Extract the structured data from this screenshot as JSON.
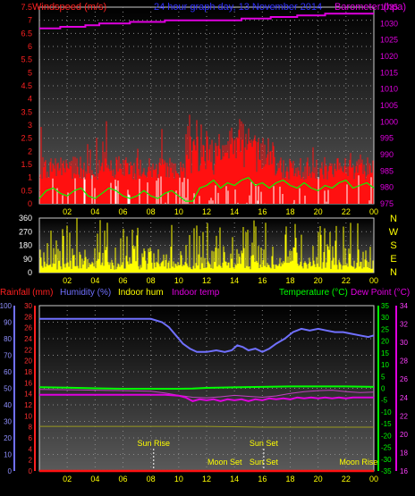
{
  "chart_data": [
    {
      "id": "wind-baro",
      "type": "line",
      "title": "24 hour graph day, 13 November 2014",
      "left_axis_label": "Windspeed (m/s)",
      "right_axis_label": "Barometer (hpa)",
      "colors": {
        "title": "#3030ff",
        "wind_label": "#ff2020",
        "baro_label": "#e000e0",
        "wind": "#ff1010",
        "gust": "#ffffff",
        "wind_avg": "#00ff00",
        "baro": "#e000e0"
      },
      "left_ylim": [
        0,
        7.5
      ],
      "left_ticks": [
        "0",
        "0.5",
        "1",
        "1.5",
        "2",
        "2.5",
        "3",
        "3.5",
        "4",
        "4.5",
        "5",
        "5.5",
        "6",
        "6.5",
        "7",
        "7.5"
      ],
      "right_ylim": [
        975,
        1035
      ],
      "right_ticks": [
        "975",
        "980",
        "985",
        "990",
        "995",
        "1000",
        "1005",
        "1010",
        "1015",
        "1020",
        "1025",
        "1030",
        "1035"
      ],
      "x_hours": [
        "02",
        "04",
        "06",
        "08",
        "10",
        "12",
        "14",
        "16",
        "18",
        "20",
        "22",
        "00"
      ],
      "series": [
        {
          "key": "barometer",
          "axis": "right",
          "x": [
            0,
            0.7,
            1.5,
            2.4,
            3.3,
            4.3,
            5.4,
            6.5,
            7.5,
            8.2,
            9.0,
            10.0,
            11.0,
            12.0,
            13.3,
            14.5,
            15.6,
            16.6,
            17.5,
            18.5,
            19.5,
            20.5,
            21.5,
            22.5,
            24
          ],
          "y": [
            1028.5,
            1028.5,
            1029.0,
            1029.0,
            1029.5,
            1030.0,
            1030.0,
            1030.5,
            1030.5,
            1030.5,
            1031.0,
            1031.0,
            1031.0,
            1031.0,
            1031.0,
            1031.5,
            1031.5,
            1032.0,
            1032.0,
            1032.5,
            1032.5,
            1033.0,
            1033.0,
            1033.0,
            1033.0
          ]
        },
        {
          "key": "wind_avg",
          "axis": "left",
          "x": [
            0,
            0.5,
            1,
            1.5,
            2,
            2.5,
            3,
            3.5,
            4,
            4.5,
            5,
            5.5,
            6,
            6.5,
            7,
            7.5,
            8,
            8.5,
            9,
            9.5,
            10,
            10.5,
            11,
            11.5,
            12,
            12.5,
            13,
            13.5,
            14,
            14.5,
            15,
            15.5,
            16,
            16.5,
            17,
            17.5,
            18,
            18.5,
            19,
            19.5,
            20,
            20.5,
            21,
            21.5,
            22,
            22.5,
            23,
            23.5,
            24
          ],
          "y": [
            0.2,
            0.5,
            0.6,
            0.4,
            0.3,
            0.5,
            0.6,
            0.3,
            0.2,
            0.4,
            0.6,
            0.5,
            0.3,
            0.2,
            0.3,
            0.5,
            0.3,
            0.2,
            0.4,
            0.5,
            0.3,
            0.1,
            0.1,
            0.6,
            0.7,
            0.9,
            0.6,
            0.8,
            0.7,
            0.9,
            1.0,
            0.7,
            0.8,
            0.6,
            0.8,
            0.9,
            0.7,
            0.6,
            0.8,
            0.6,
            0.5,
            0.7,
            0.6,
            0.8,
            0.9,
            0.6,
            0.7,
            0.8,
            0.6
          ]
        }
      ]
    },
    {
      "id": "wind-direction",
      "type": "bar",
      "left_axis_label": "",
      "colors": {
        "bars": "#ffff00"
      },
      "ylim": [
        0,
        360
      ],
      "left_ticks": [
        "0",
        "90",
        "180",
        "270",
        "360"
      ],
      "right_labels": [
        "N",
        "W",
        "S",
        "E",
        "N"
      ],
      "x_hours": [
        "02",
        "04",
        "06",
        "08",
        "10",
        "12",
        "14",
        "16",
        "18",
        "20",
        "22",
        "00"
      ]
    },
    {
      "id": "temp-hum-rain",
      "type": "line",
      "legend_left": [
        {
          "label": "Rainfall (mm)",
          "color": "#ff2020"
        },
        {
          "label": "Humidity (%)",
          "color": "#7070ff"
        },
        {
          "label": "Indoor hum",
          "color": "#ffff00"
        },
        {
          "label": "Indoor temp",
          "color": "#e000e0"
        }
      ],
      "legend_right": [
        {
          "label": "Temperature (°C)",
          "color": "#00ff00"
        },
        {
          "label": "Dew Point (°C)",
          "color": "#e000e0"
        }
      ],
      "humidity_ylim": [
        0,
        100
      ],
      "humidity_ticks": [
        "0",
        "10",
        "20",
        "30",
        "40",
        "50",
        "60",
        "70",
        "80",
        "90",
        "100"
      ],
      "rain_ylim": [
        0,
        30
      ],
      "rain_ticks": [
        "0",
        "2",
        "4",
        "6",
        "8",
        "10",
        "12",
        "14",
        "16",
        "18",
        "20",
        "22",
        "24",
        "26",
        "28",
        "30"
      ],
      "temp_ylim": [
        -35,
        35
      ],
      "temp_ticks": [
        "-35",
        "-30",
        "-25",
        "-20",
        "-15",
        "-10",
        "-5",
        "0",
        "5",
        "10",
        "15",
        "20",
        "25",
        "30",
        "35"
      ],
      "indoor_ylim": [
        16,
        34
      ],
      "indoor_ticks": [
        "16",
        "18",
        "20",
        "22",
        "24",
        "26",
        "28",
        "30",
        "32",
        "34"
      ],
      "x_hours": [
        "02",
        "04",
        "06",
        "08",
        "10",
        "12",
        "14",
        "16",
        "18",
        "20",
        "22",
        "00"
      ],
      "annotations": [
        {
          "label": "Sun Rise",
          "hour": 8.2,
          "row": "upper"
        },
        {
          "label": "Sun Set",
          "hour": 16.1,
          "row": "upper"
        },
        {
          "label": "Moon Set",
          "hour": 13.3,
          "row": "lower"
        },
        {
          "label": "Sun Set",
          "hour": 16.1,
          "row": "lower"
        },
        {
          "label": "Moon Rise",
          "hour": 22.9,
          "row": "lower"
        }
      ],
      "series": [
        {
          "key": "humidity",
          "axis": "humidity",
          "color": "#7070ff",
          "x": [
            0,
            1,
            2,
            3,
            4,
            5,
            6,
            7,
            8,
            8.8,
            9.3,
            9.8,
            10.3,
            10.8,
            11.3,
            12,
            12.7,
            13.3,
            13.8,
            14.2,
            14.6,
            15,
            15.5,
            16,
            16.5,
            17,
            17.6,
            18.2,
            18.8,
            19.4,
            20,
            20.6,
            21.2,
            21.8,
            22.4,
            23,
            23.6,
            24
          ],
          "y": [
            92,
            92,
            92,
            92,
            92,
            92,
            92,
            92,
            92,
            90,
            87,
            82,
            77,
            74,
            72,
            72,
            73,
            72,
            73,
            76,
            75,
            73,
            74,
            72,
            74,
            77,
            80,
            84,
            86,
            85,
            86,
            85,
            84,
            84,
            83,
            82,
            81,
            82
          ]
        },
        {
          "key": "temperature",
          "axis": "temp",
          "color": "#00ff00",
          "x": [
            0,
            2,
            4,
            6,
            8,
            10,
            11,
            12,
            14,
            16,
            18,
            20,
            22,
            24
          ],
          "y": [
            0.5,
            0.3,
            0.0,
            -0.2,
            -0.2,
            -0.2,
            -0.1,
            0.2,
            0.4,
            0.6,
            0.8,
            0.8,
            0.8,
            0.6
          ]
        },
        {
          "key": "dew_point",
          "axis": "temp",
          "color": "#c040c0",
          "x": [
            0,
            2,
            4,
            6,
            8,
            9,
            10,
            11,
            12,
            13,
            14,
            15,
            16,
            17,
            18,
            19,
            20,
            21,
            22,
            23,
            24
          ],
          "y": [
            -0.5,
            -0.6,
            -0.8,
            -1.0,
            -1.2,
            -2.0,
            -3.0,
            -3.8,
            -4.0,
            -3.6,
            -3.0,
            -3.4,
            -3.8,
            -3.2,
            -2.2,
            -1.4,
            -1.0,
            -0.8,
            -1.4,
            -1.8,
            -1.6
          ]
        },
        {
          "key": "indoor_temp",
          "axis": "indoor",
          "color": "#e000e0",
          "x": [
            0,
            2,
            4,
            6,
            8,
            9,
            10,
            10.5,
            11,
            11.5,
            12,
            12.5,
            13,
            13.5,
            14,
            14.5,
            15,
            15.5,
            16,
            16.5,
            17,
            17.5,
            18,
            18.5,
            19,
            19.5,
            20,
            20.5,
            21,
            21.5,
            22,
            22.5,
            23,
            23.5,
            24
          ],
          "y": [
            24.3,
            24.3,
            24.3,
            24.3,
            24.3,
            24.3,
            24.2,
            24.0,
            23.6,
            23.8,
            23.7,
            23.8,
            23.6,
            23.8,
            23.7,
            23.8,
            23.6,
            23.8,
            23.7,
            23.9,
            23.8,
            23.9,
            23.8,
            24.0,
            23.9,
            24.0,
            23.9,
            24.0,
            23.9,
            24.0,
            23.9,
            24.0,
            24.0,
            24.0,
            24.0
          ]
        },
        {
          "key": "indoor_hum",
          "axis": "humidity",
          "color": "#9a9a20",
          "x": [
            0,
            4,
            8,
            12,
            16,
            20,
            24
          ],
          "y": [
            27,
            27,
            27,
            27,
            26.5,
            26.5,
            26.5
          ]
        },
        {
          "key": "rainfall",
          "axis": "rain",
          "color": "#ff1010",
          "x": [
            0,
            24
          ],
          "y": [
            0,
            0
          ]
        }
      ]
    }
  ]
}
